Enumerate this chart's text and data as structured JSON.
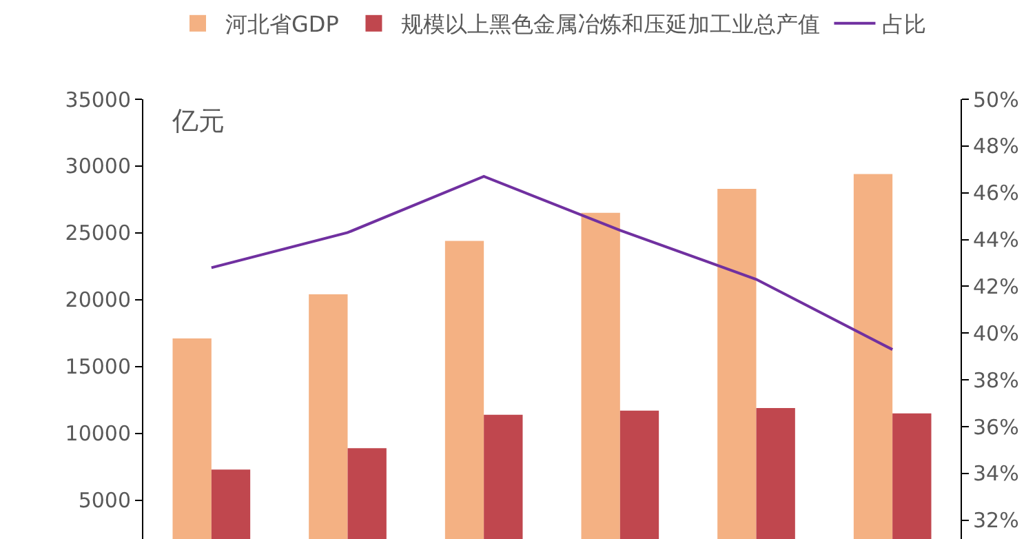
{
  "chart_data": {
    "type": "bar",
    "categories": [
      null,
      null,
      null,
      null,
      null,
      null
    ],
    "series": [
      {
        "name": "河北省GDP",
        "color": "#f4b183",
        "values": [
          17100,
          20400,
          24400,
          26500,
          28300,
          29400
        ]
      },
      {
        "name": "规模以上黑色金属冶炼和压延加工业总产值",
        "color": "#c0474e",
        "values": [
          7300,
          8900,
          11400,
          11700,
          11900,
          11500
        ]
      },
      {
        "name": "占比",
        "type": "line",
        "axis": "y2",
        "color": "#7030a0",
        "values": [
          42.8,
          44.3,
          46.7,
          44.4,
          42.3,
          39.3
        ]
      }
    ],
    "ylim": [
      2100,
      35000
    ],
    "yticks": [
      5000,
      10000,
      15000,
      20000,
      25000,
      30000,
      35000
    ],
    "y2lim": [
      31.2,
      50
    ],
    "y2ticks": [
      {
        "value": 32,
        "label": "32%"
      },
      {
        "value": 34,
        "label": "34%"
      },
      {
        "value": 36,
        "label": "36%"
      },
      {
        "value": 38,
        "label": "38%"
      },
      {
        "value": 40,
        "label": "40%"
      },
      {
        "value": 42,
        "label": "42%"
      },
      {
        "value": 44,
        "label": "44%"
      },
      {
        "value": 46,
        "label": "46%"
      },
      {
        "value": 48,
        "label": "48%"
      },
      {
        "value": 50,
        "label": "50%"
      }
    ],
    "annotations": [
      "亿元"
    ],
    "grid": false,
    "legend": "top",
    "marker": "none",
    "line_style": "solid",
    "tick_labels": "y"
  }
}
